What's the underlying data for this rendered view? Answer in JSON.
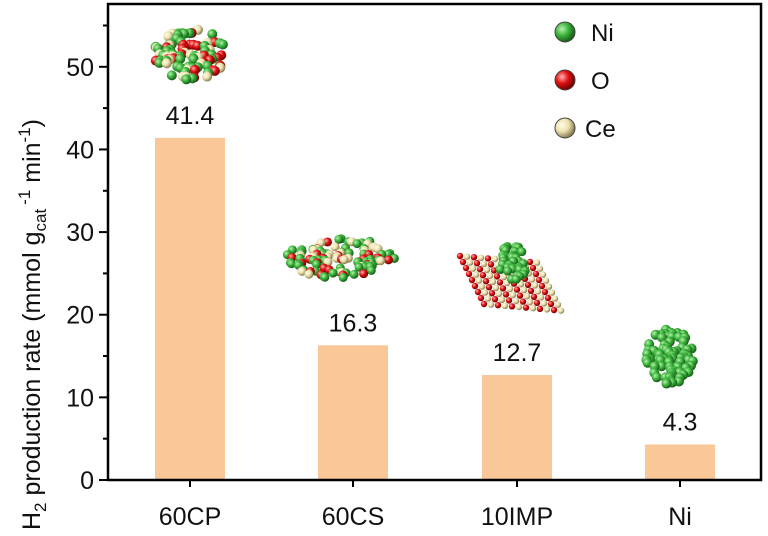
{
  "chart_data": {
    "type": "bar",
    "categories": [
      "60CP",
      "60CS",
      "10IMP",
      "Ni"
    ],
    "values": [
      41.4,
      16.3,
      12.7,
      4.3
    ],
    "data_labels": [
      "41.4",
      "16.3",
      "12.7",
      "4.3"
    ],
    "xlabel": "",
    "ylabel": {
      "main": "H",
      "sub1": "2",
      "mid": " production rate (mmol g",
      "sub2": "cat",
      "sup": "-1",
      "end": " min",
      "sup2": "-1",
      "close": ")"
    },
    "ylim": [
      0,
      57.6
    ],
    "yticks": [
      0,
      10,
      20,
      30,
      40,
      50
    ],
    "ytick_labels": [
      "0",
      "10",
      "20",
      "30",
      "40",
      "50"
    ],
    "grid": false,
    "bar_color": "#fac898",
    "legend": {
      "placement": "top-right",
      "entries": [
        {
          "label": "Ni",
          "color": "#3cb63c"
        },
        {
          "label": "O",
          "color": "#e01010"
        },
        {
          "label": "Ce",
          "color": "#efe3b0"
        }
      ]
    },
    "insets": [
      "60CP-structure",
      "60CS-structure",
      "10IMP-structure",
      "Ni-structure"
    ]
  }
}
